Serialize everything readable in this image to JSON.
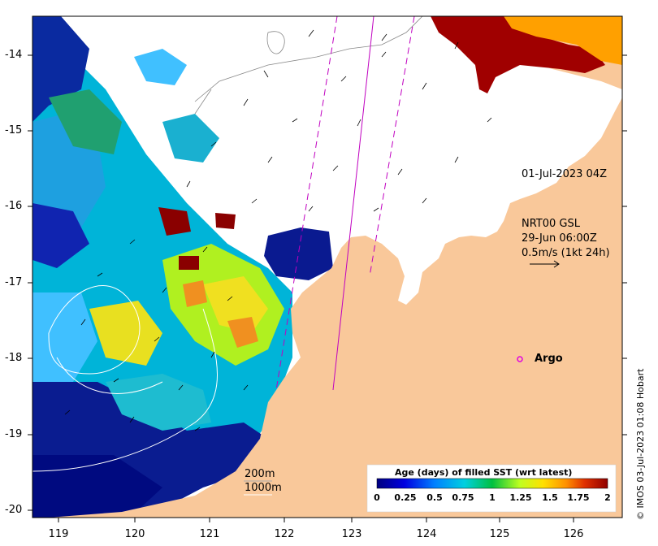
{
  "map": {
    "lon_ticks": [
      "119",
      "120",
      "121",
      "122",
      "123",
      "124",
      "125",
      "126"
    ],
    "lat_ticks": [
      "-14",
      "-15",
      "-16",
      "-17",
      "-18",
      "-19",
      "-20"
    ]
  },
  "annotations": {
    "track_time": "01-Jul-2023 04Z",
    "current_product": "NRT00 GSL",
    "current_time": "29-Jun 06:00Z",
    "vector_scale": "0.5m/s (1kt 24h)",
    "argo_label": "Argo",
    "contour_200": "200m",
    "contour_1000": "1000m"
  },
  "colorbar": {
    "title": "Age (days) of filled SST (wrt latest)",
    "ticks": [
      "0",
      "0.25",
      "0.5",
      "0.75",
      "1",
      "1.25",
      "1.5",
      "1.75",
      "2"
    ]
  },
  "credit": "© IMOS 03-Jul-2023 01:08 Hobart",
  "colors": {
    "land": "#f9c89a",
    "argo": "#e000e0",
    "track": "#c000c0"
  }
}
